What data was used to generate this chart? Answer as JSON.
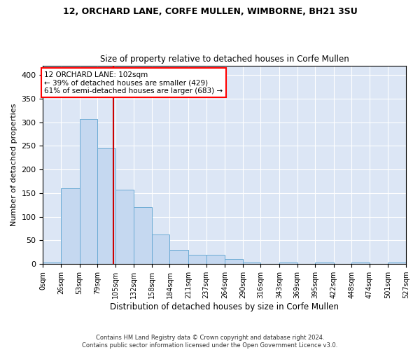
{
  "title_line1": "12, ORCHARD LANE, CORFE MULLEN, WIMBORNE, BH21 3SU",
  "title_line2": "Size of property relative to detached houses in Corfe Mullen",
  "xlabel": "Distribution of detached houses by size in Corfe Mullen",
  "ylabel": "Number of detached properties",
  "footnote": "Contains HM Land Registry data © Crown copyright and database right 2024.\nContains public sector information licensed under the Open Government Licence v3.0.",
  "annotation_line1": "12 ORCHARD LANE: 102sqm",
  "annotation_line2": "← 39% of detached houses are smaller (429)",
  "annotation_line3": "61% of semi-detached houses are larger (683) →",
  "property_size": 102,
  "bar_color": "#c5d8f0",
  "bar_edge_color": "#6aaad4",
  "vline_color": "#cc0000",
  "background_color": "#dce6f5",
  "bin_edges": [
    0,
    26,
    53,
    79,
    105,
    132,
    158,
    184,
    211,
    237,
    264,
    290,
    316,
    343,
    369,
    395,
    422,
    448,
    474,
    501,
    527
  ],
  "bin_labels": [
    "0sqm",
    "26sqm",
    "53sqm",
    "79sqm",
    "105sqm",
    "132sqm",
    "158sqm",
    "184sqm",
    "211sqm",
    "237sqm",
    "264sqm",
    "290sqm",
    "316sqm",
    "343sqm",
    "369sqm",
    "395sqm",
    "422sqm",
    "448sqm",
    "474sqm",
    "501sqm",
    "527sqm"
  ],
  "bar_heights": [
    3,
    160,
    307,
    245,
    157,
    120,
    63,
    30,
    20,
    20,
    10,
    3,
    0,
    3,
    0,
    3,
    0,
    3,
    0,
    3
  ],
  "ylim": [
    0,
    420
  ],
  "yticks": [
    0,
    50,
    100,
    150,
    200,
    250,
    300,
    350,
    400
  ]
}
